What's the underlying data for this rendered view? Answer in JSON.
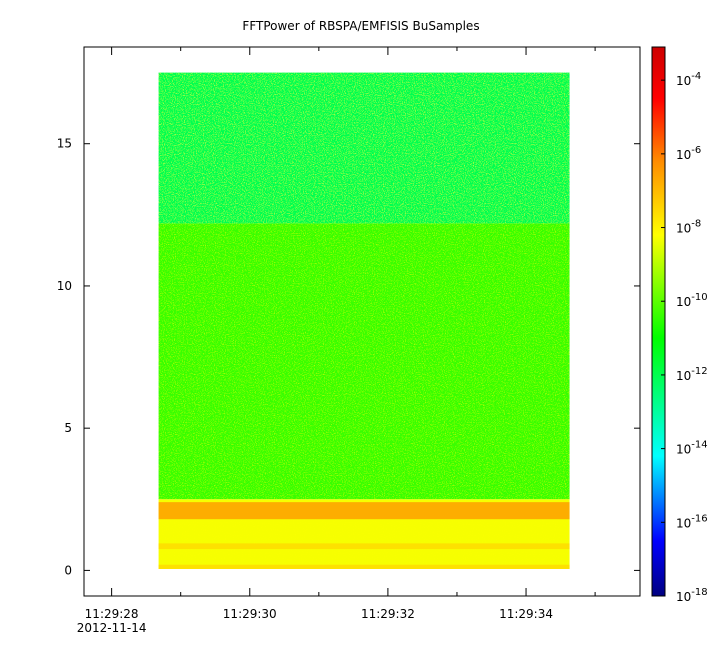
{
  "chart_data": {
    "type": "heatmap",
    "title": "FFTPower of RBSPA/EMFISIS  BuSamples",
    "xlabel": "",
    "ylabel": "",
    "x_ticks": [
      {
        "value": 28.0,
        "label": "11:29:28",
        "sublabel": "2012-11-14"
      },
      {
        "value": 30.0,
        "label": "11:29:30",
        "sublabel": ""
      },
      {
        "value": 32.0,
        "label": "11:29:32",
        "sublabel": ""
      },
      {
        "value": 34.0,
        "label": "11:29:34",
        "sublabel": ""
      }
    ],
    "x_minor_ticks": [
      29.0,
      31.0,
      33.0,
      35.0
    ],
    "xlim": [
      27.6,
      35.65
    ],
    "ylim": [
      -0.9,
      18.4
    ],
    "y_ticks": [
      {
        "value": 0,
        "label": "0"
      },
      {
        "value": 5,
        "label": "5"
      },
      {
        "value": 10,
        "label": "10"
      },
      {
        "value": 15,
        "label": "15"
      }
    ],
    "data_extent": {
      "x": [
        28.68,
        34.63
      ],
      "y": [
        0.05,
        17.5
      ]
    },
    "colorbar": {
      "scale": "log",
      "range_exponents": [
        -18,
        -3.1
      ],
      "ticks": [
        {
          "base": "10",
          "exponent": "-4",
          "value": 0.0001
        },
        {
          "base": "10",
          "exponent": "-6",
          "value": 1e-06
        },
        {
          "base": "10",
          "exponent": "-8",
          "value": 1e-08
        },
        {
          "base": "10",
          "exponent": "-10",
          "value": 1e-10
        },
        {
          "base": "10",
          "exponent": "-12",
          "value": 1e-12
        },
        {
          "base": "10",
          "exponent": "-14",
          "value": 1e-14
        },
        {
          "base": "10",
          "exponent": "-16",
          "value": 1e-16
        },
        {
          "base": "10",
          "exponent": "-18",
          "value": 1e-18
        }
      ],
      "stops": [
        {
          "value": -18,
          "color": "#000080"
        },
        {
          "value": -16.5,
          "color": "#0000ff"
        },
        {
          "value": -14.2,
          "color": "#00ffff"
        },
        {
          "value": -11.0,
          "color": "#00ff00"
        },
        {
          "value": -8.2,
          "color": "#ffff00"
        },
        {
          "value": -6.2,
          "color": "#ff8c00"
        },
        {
          "value": -4.5,
          "color": "#ff0000"
        },
        {
          "value": -3.1,
          "color": "#cc0000"
        }
      ]
    },
    "regions": [
      {
        "name": "upper-band",
        "y": [
          12.2,
          17.5
        ],
        "log_power": -12.0
      },
      {
        "name": "mid-band",
        "y": [
          2.5,
          12.2
        ],
        "log_power": -10.4
      },
      {
        "name": "low-band",
        "y": [
          0.05,
          2.5
        ],
        "log_power": -8.3
      }
    ],
    "features": [
      {
        "name": "emission-band",
        "y": [
          1.8,
          2.4
        ],
        "log_power": -6.3
      },
      {
        "name": "emission-band",
        "y": [
          0.75,
          0.95
        ],
        "log_power": -7.5
      },
      {
        "name": "emission-band",
        "y": [
          0.05,
          0.2
        ],
        "log_power": -7.5
      }
    ]
  }
}
